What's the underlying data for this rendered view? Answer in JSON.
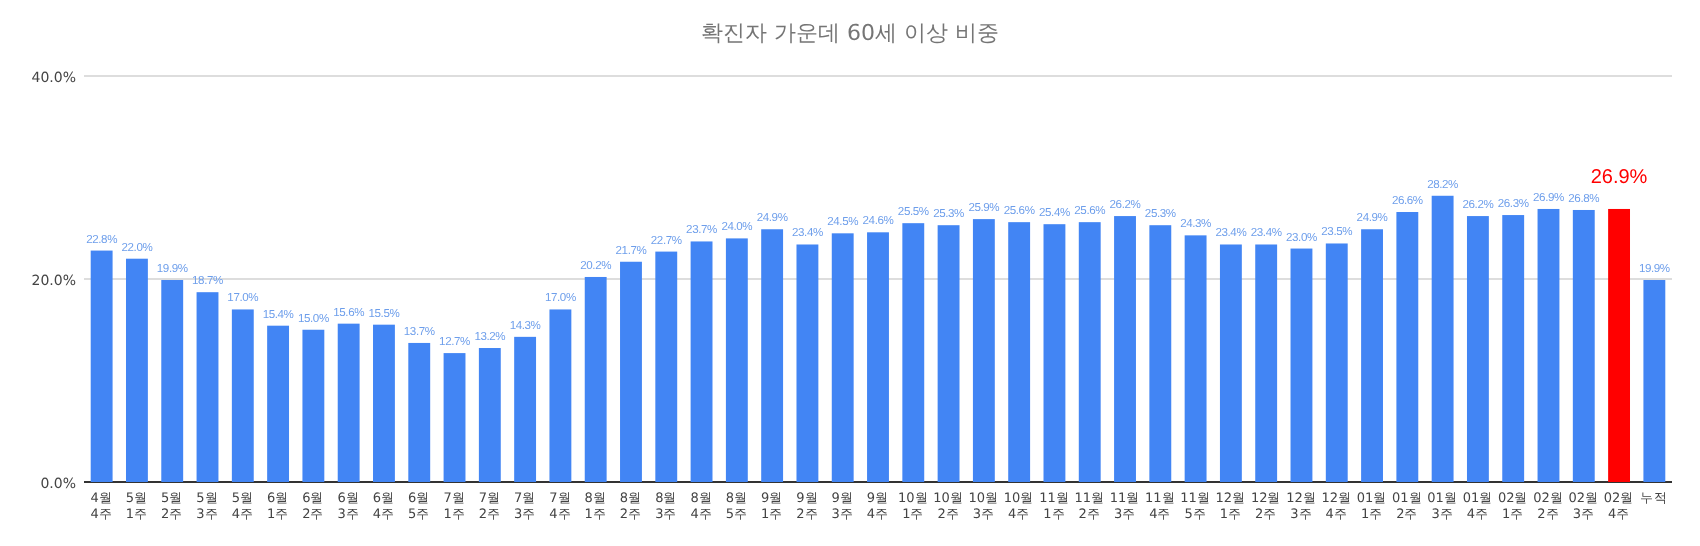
{
  "chart_data": {
    "type": "bar",
    "title": "확진자 가운데 60세 이상 비중",
    "categories": [
      "4월 4주",
      "5월 1주",
      "5월 2주",
      "5월 3주",
      "5월 4주",
      "6월 1주",
      "6월 2주",
      "6월 3주",
      "6월 4주",
      "6월 5주",
      "7월 1주",
      "7월 2주",
      "7월 3주",
      "7월 4주",
      "8월 1주",
      "8월 2주",
      "8월 3주",
      "8월 4주",
      "8월 5주",
      "9월 1주",
      "9월 2주",
      "9월 3주",
      "9월 4주",
      "10월 1주",
      "10월 2주",
      "10월 3주",
      "10월 4주",
      "11월 1주",
      "11월 2주",
      "11월 3주",
      "11월 4주",
      "11월 5주",
      "12월 1주",
      "12월 2주",
      "12월 3주",
      "12월 4주",
      "01월 1주",
      "01월 2주",
      "01월 3주",
      "01월 4주",
      "02월 1주",
      "02월 2주",
      "02월 3주",
      "02월 4주",
      "누적"
    ],
    "values": [
      22.8,
      22.0,
      19.9,
      18.7,
      17.0,
      15.4,
      15.0,
      15.6,
      15.5,
      13.7,
      12.7,
      13.2,
      14.3,
      17.0,
      20.2,
      21.7,
      22.7,
      23.7,
      24.0,
      24.9,
      23.4,
      24.5,
      24.6,
      25.5,
      25.3,
      25.9,
      25.6,
      25.4,
      25.6,
      26.2,
      25.3,
      24.3,
      23.4,
      23.4,
      23.0,
      23.5,
      24.9,
      26.6,
      28.2,
      26.2,
      26.3,
      26.9,
      26.8,
      26.9,
      19.9
    ],
    "value_labels": [
      "22.8%",
      "22.0%",
      "19.9%",
      "18.7%",
      "17.0%",
      "15.4%",
      "15.0%",
      "15.6%",
      "15.5%",
      "13.7%",
      "12.7%",
      "13.2%",
      "14.3%",
      "17.0%",
      "20.2%",
      "21.7%",
      "22.7%",
      "23.7%",
      "24.0%",
      "24.9%",
      "23.4%",
      "24.5%",
      "24.6%",
      "25.5%",
      "25.3%",
      "25.9%",
      "25.6%",
      "25.4%",
      "25.6%",
      "26.2%",
      "25.3%",
      "24.3%",
      "23.4%",
      "23.4%",
      "23.0%",
      "23.5%",
      "24.9%",
      "26.6%",
      "28.2%",
      "26.2%",
      "26.3%",
      "26.9%",
      "26.8%",
      "26.9%",
      "19.9%"
    ],
    "colors": [
      "#4285f4",
      "#4285f4",
      "#4285f4",
      "#4285f4",
      "#4285f4",
      "#4285f4",
      "#4285f4",
      "#4285f4",
      "#4285f4",
      "#4285f4",
      "#4285f4",
      "#4285f4",
      "#4285f4",
      "#4285f4",
      "#4285f4",
      "#4285f4",
      "#4285f4",
      "#4285f4",
      "#4285f4",
      "#4285f4",
      "#4285f4",
      "#4285f4",
      "#4285f4",
      "#4285f4",
      "#4285f4",
      "#4285f4",
      "#4285f4",
      "#4285f4",
      "#4285f4",
      "#4285f4",
      "#4285f4",
      "#4285f4",
      "#4285f4",
      "#4285f4",
      "#4285f4",
      "#4285f4",
      "#4285f4",
      "#4285f4",
      "#4285f4",
      "#4285f4",
      "#4285f4",
      "#4285f4",
      "#4285f4",
      "#ff0000",
      "#4285f4"
    ],
    "ylim": [
      0,
      40
    ],
    "yticks": [
      {
        "value": 0,
        "label": "0.0%"
      },
      {
        "value": 20,
        "label": "20.0%"
      },
      {
        "value": 40,
        "label": "40.0%"
      }
    ],
    "grid": "y"
  }
}
